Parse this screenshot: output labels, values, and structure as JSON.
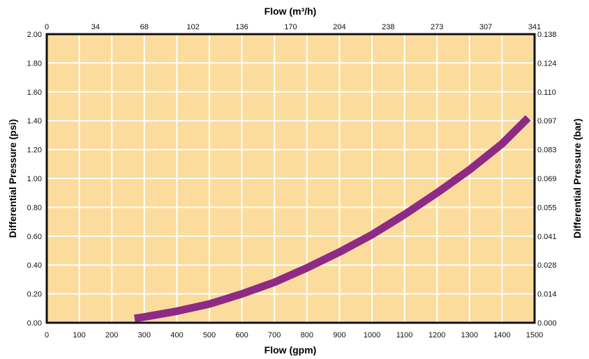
{
  "chart_data": {
    "type": "line",
    "title": "",
    "xlabel": "Flow (gpm)",
    "x2label": "Flow (m³/h)",
    "ylabel": "Differential Pressure (psi)",
    "y2label": "Differential Pressure (bar)",
    "xlim": [
      0,
      1500
    ],
    "ylim": [
      0,
      2.0
    ],
    "grid": true,
    "colors": {
      "plot_background": "#fbdc9c",
      "grid": "#ffffff",
      "frame": "#111111",
      "series": "#8e2a85"
    },
    "x_ticks": [
      "0",
      "100",
      "200",
      "300",
      "400",
      "500",
      "600",
      "700",
      "800",
      "900",
      "1000",
      "1100",
      "1200",
      "1300",
      "1400",
      "1500"
    ],
    "x2_ticks": [
      "0",
      "34",
      "68",
      "102",
      "136",
      "170",
      "204",
      "238",
      "273",
      "307",
      "341"
    ],
    "y_ticks": [
      "0.00",
      "0.20",
      "0.40",
      "0.60",
      "0.80",
      "1.00",
      "1.20",
      "1.40",
      "1.60",
      "1.80",
      "2.00"
    ],
    "y2_ticks": [
      "0.000",
      "0.014",
      "0.028",
      "0.041",
      "0.055",
      "0.069",
      "0.083",
      "0.097",
      "0.110",
      "0.124",
      "0.138"
    ],
    "series": [
      {
        "x": [
          270,
          300,
          400,
          500,
          600,
          700,
          800,
          900,
          1000,
          1100,
          1200,
          1300,
          1400,
          1480
        ],
        "y": [
          0.03,
          0.04,
          0.08,
          0.13,
          0.2,
          0.28,
          0.38,
          0.49,
          0.61,
          0.75,
          0.9,
          1.06,
          1.24,
          1.42
        ]
      }
    ]
  }
}
